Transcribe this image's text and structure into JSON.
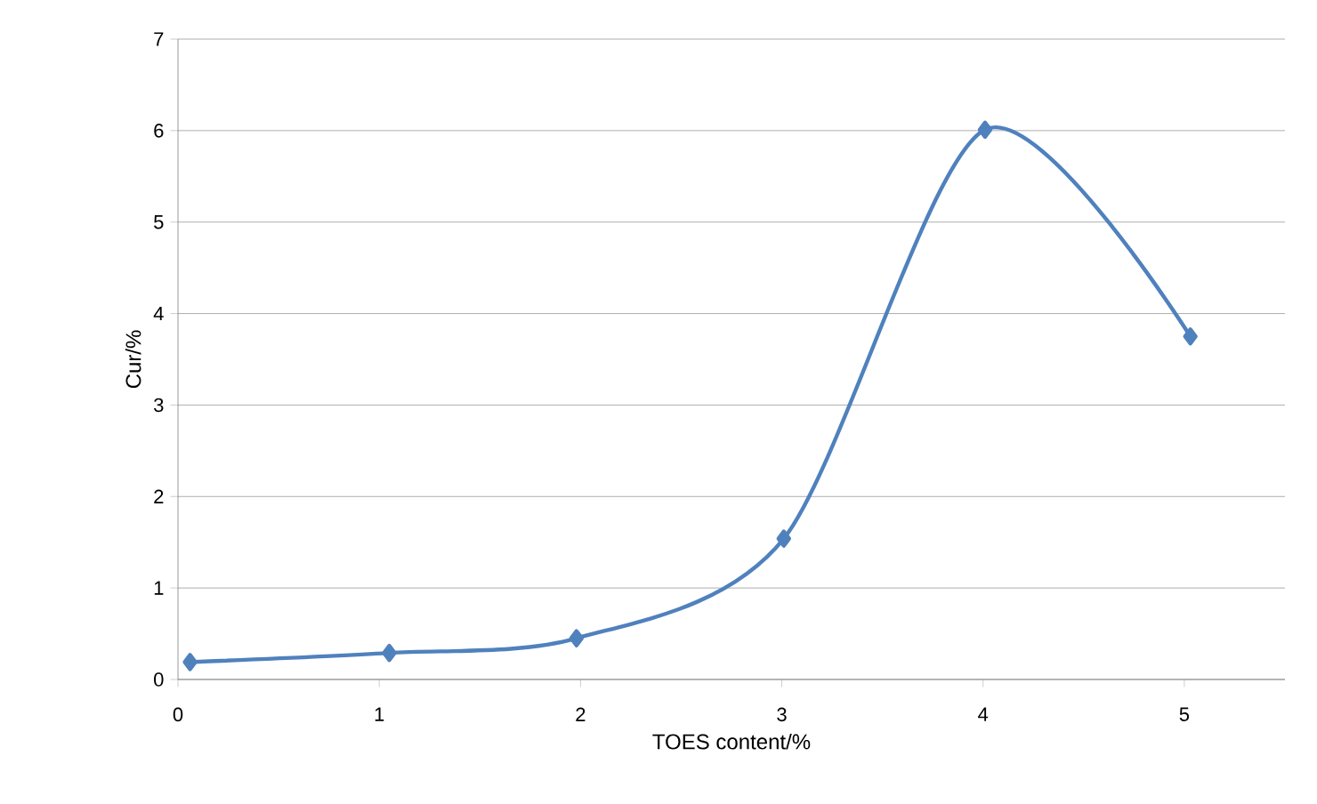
{
  "chart_data": {
    "type": "line",
    "xlabel": "TOES content/%",
    "ylabel": "Cur/%",
    "x": [
      0.06,
      1.05,
      1.98,
      3.01,
      4.01,
      5.03
    ],
    "series": [
      {
        "color": "#4f81bd",
        "values": [
          0.19,
          0.29,
          0.45,
          1.54,
          6.01,
          3.75
        ]
      }
    ],
    "xlim": [
      0,
      5.5
    ],
    "ylim": [
      0,
      7
    ],
    "xticks": [
      0,
      1,
      2,
      3,
      4,
      5
    ],
    "yticks": [
      0,
      1,
      2,
      3,
      4,
      5,
      6,
      7
    ],
    "grid": "y",
    "marker": "diamond",
    "line_style": "solid"
  }
}
